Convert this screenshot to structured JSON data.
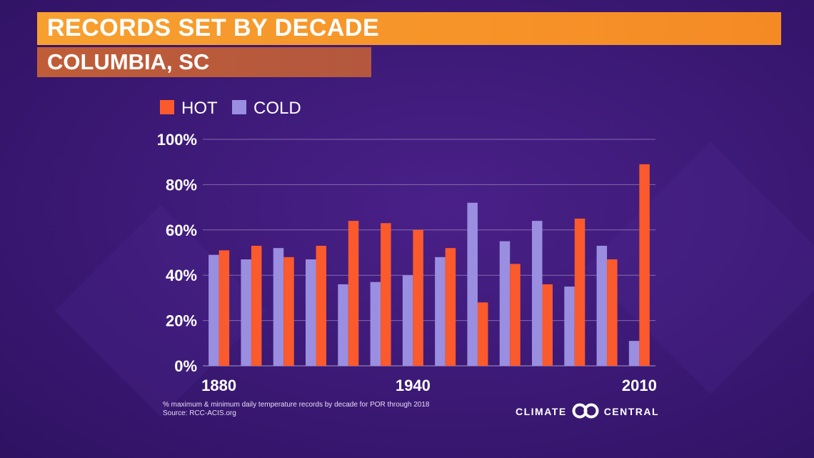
{
  "header": {
    "title": "RECORDS SET BY DECADE",
    "subtitle": "COLUMBIA, SC"
  },
  "footnote": {
    "line1": "% maximum & minimum daily temperature records by decade for POR through 2018",
    "line2": "Source: RCC-ACIS.org"
  },
  "brand": {
    "left": "CLIMATE",
    "right": "CENTRAL",
    "logo_icon": "linked-rings-icon"
  },
  "colors": {
    "hot": "#fb5a2c",
    "cold": "#9a8ee0",
    "title_bar": "#f7961e",
    "subtitle_bar": "#b85a3c",
    "background": "#3d1a78"
  },
  "chart_data": {
    "type": "bar",
    "categories": [
      "1880",
      "1890",
      "1900",
      "1910",
      "1920",
      "1930",
      "1940",
      "1950",
      "1960",
      "1970",
      "1980",
      "1990",
      "2000",
      "2010"
    ],
    "x_tick_labels": [
      "1880",
      "1940",
      "2010"
    ],
    "series": [
      {
        "name": "COLD",
        "color": "#9a8ee0",
        "values": [
          49,
          47,
          52,
          47,
          36,
          37,
          40,
          48,
          72,
          55,
          64,
          35,
          53,
          11
        ]
      },
      {
        "name": "HOT",
        "color": "#fb5a2c",
        "values": [
          51,
          53,
          48,
          53,
          64,
          63,
          60,
          52,
          28,
          45,
          36,
          65,
          47,
          89
        ]
      }
    ],
    "legend": [
      "HOT",
      "COLD"
    ],
    "legend_position": "top-left",
    "y_ticks": [
      "0%",
      "20%",
      "40%",
      "60%",
      "80%",
      "100%"
    ],
    "ylim": [
      0,
      100
    ],
    "grid": true,
    "title": "RECORDS SET BY DECADE",
    "subtitle": "COLUMBIA, SC",
    "xlabel": "",
    "ylabel": ""
  }
}
